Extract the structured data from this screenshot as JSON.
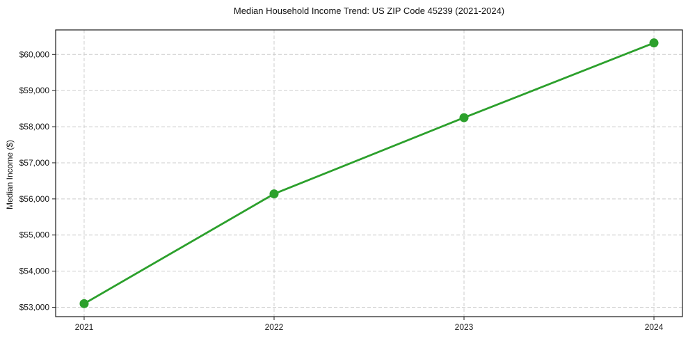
{
  "figure": {
    "background": "#ffffff"
  },
  "chart_data": {
    "type": "line",
    "title": "Median Household Income Trend: US ZIP Code 45239 (2021-2024)",
    "xlabel": "",
    "ylabel": "Median Income ($)",
    "x": [
      2021,
      2022,
      2023,
      2024
    ],
    "series": [
      {
        "name": "Median Household Income",
        "values": [
          53100,
          56140,
          58250,
          60320
        ],
        "color": "#2ca02c",
        "marker": "o"
      }
    ],
    "xlim": [
      2020.85,
      2024.15
    ],
    "ylim": [
      52740,
      60680
    ],
    "xticks": [
      2021,
      2022,
      2023,
      2024
    ],
    "xtick_labels": [
      "2021",
      "2022",
      "2023",
      "2024"
    ],
    "yticks": [
      53000,
      54000,
      55000,
      56000,
      57000,
      58000,
      59000,
      60000
    ],
    "ytick_labels": [
      "$53,000",
      "$54,000",
      "$55,000",
      "$56,000",
      "$57,000",
      "$58,000",
      "$59,000",
      "$60,000"
    ],
    "grid": true,
    "grid_style": "dashed",
    "grid_color": "#cccccc",
    "spine_color": "#1a1a1a",
    "legend": "none"
  }
}
